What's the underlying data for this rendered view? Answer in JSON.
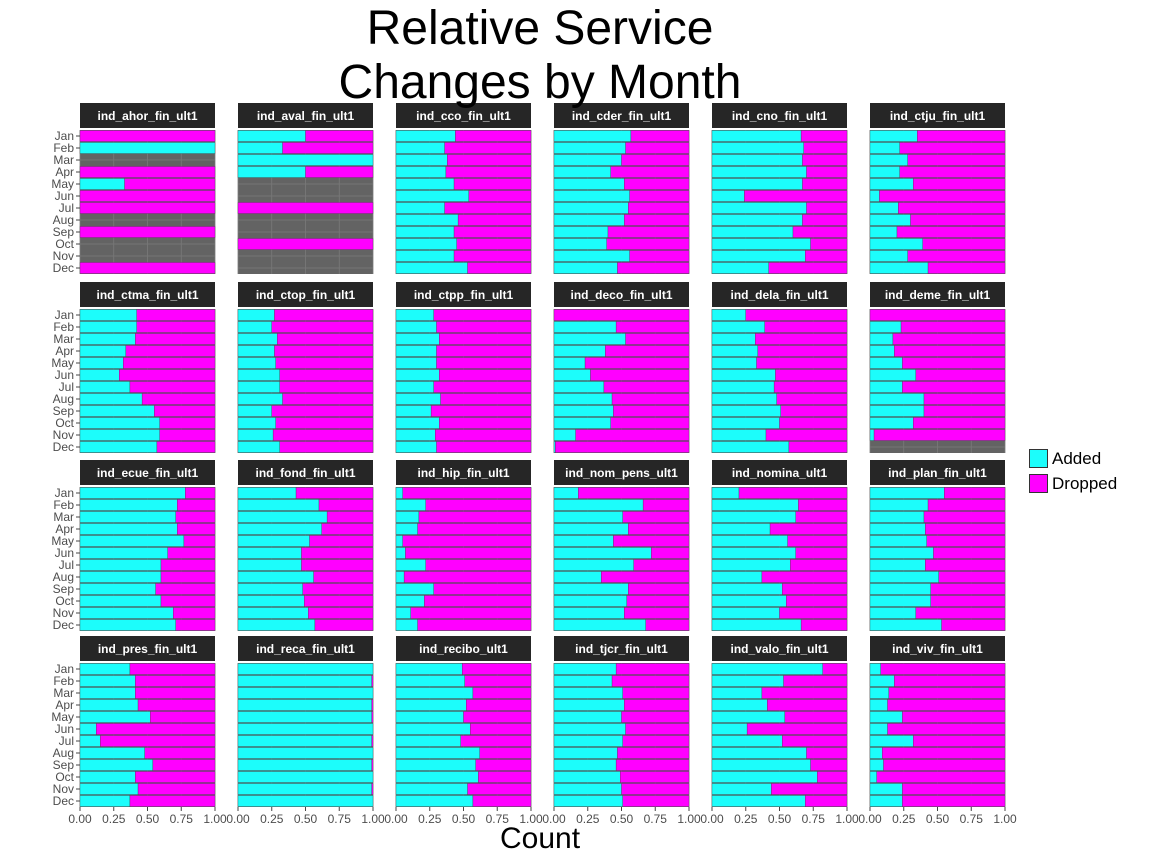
{
  "chart_data": {
    "type": "bar",
    "orientation": "horizontal",
    "stacked": true,
    "facet_grid": {
      "rows": 4,
      "cols": 6
    },
    "title": "Relative Service\nChanges by Month",
    "xlabel": "Count",
    "ylabel": "",
    "xlim": [
      0,
      1
    ],
    "x_ticks": [
      "0.00",
      "0.25",
      "0.50",
      "0.75",
      "1.00"
    ],
    "categories": [
      "Jan",
      "Feb",
      "Mar",
      "Apr",
      "May",
      "Jun",
      "Jul",
      "Aug",
      "Sep",
      "Oct",
      "Nov",
      "Dec"
    ],
    "grid": true,
    "legend": {
      "position": "right",
      "entries": [
        {
          "name": "Added",
          "color": "#1cfdfb"
        },
        {
          "name": "Dropped",
          "color": "#ff00ff"
        }
      ]
    },
    "colors": {
      "panel_bg": "#636363",
      "strip_bg": "#262626",
      "strip_text": "#ffffff",
      "grid": "#7a7a7a"
    },
    "series_note": "Each panel lists, per month, the Added fraction; Dropped = 1 - Added; null = no data",
    "panels": [
      {
        "name": "ind_ahor_fin_ult1",
        "added": [
          0,
          1.0,
          null,
          0,
          0.33,
          0,
          0,
          null,
          0,
          null,
          null,
          0
        ]
      },
      {
        "name": "ind_aval_fin_ult1",
        "added": [
          0.5,
          0.33,
          1.0,
          0.5,
          null,
          null,
          0,
          null,
          null,
          0,
          null,
          null
        ]
      },
      {
        "name": "ind_cco_fin_ult1",
        "added": [
          0.44,
          0.36,
          0.38,
          0.37,
          0.43,
          0.54,
          0.36,
          0.46,
          0.43,
          0.45,
          0.43,
          0.53
        ]
      },
      {
        "name": "ind_cder_fin_ult1",
        "added": [
          0.57,
          0.53,
          0.5,
          0.42,
          0.52,
          0.56,
          0.55,
          0.52,
          0.4,
          0.39,
          0.56,
          0.47
        ]
      },
      {
        "name": "ind_cno_fin_ult1",
        "added": [
          0.66,
          0.68,
          0.67,
          0.7,
          0.67,
          0.24,
          0.7,
          0.67,
          0.6,
          0.73,
          0.69,
          0.42
        ]
      },
      {
        "name": "ind_ctju_fin_ult1",
        "added": [
          0.35,
          0.22,
          0.28,
          0.22,
          0.32,
          0.07,
          0.21,
          0.3,
          0.2,
          0.39,
          0.28,
          0.43
        ]
      },
      {
        "name": "ind_ctma_fin_ult1",
        "added": [
          0.42,
          0.42,
          0.41,
          0.34,
          0.32,
          0.29,
          0.37,
          0.46,
          0.55,
          0.59,
          0.59,
          0.57
        ]
      },
      {
        "name": "ind_ctop_fin_ult1",
        "added": [
          0.27,
          0.25,
          0.29,
          0.27,
          0.28,
          0.31,
          0.31,
          0.33,
          0.25,
          0.28,
          0.26,
          0.31
        ]
      },
      {
        "name": "ind_ctpp_fin_ult1",
        "added": [
          0.28,
          0.3,
          0.32,
          0.3,
          0.3,
          0.32,
          0.28,
          0.33,
          0.26,
          0.32,
          0.29,
          0.3
        ]
      },
      {
        "name": "ind_deco_fin_ult1",
        "added": [
          0.0,
          0.46,
          0.53,
          0.38,
          0.23,
          0.27,
          0.37,
          0.43,
          0.44,
          0.42,
          0.16,
          0.01
        ]
      },
      {
        "name": "ind_dela_fin_ult1",
        "added": [
          0.25,
          0.39,
          0.32,
          0.34,
          0.33,
          0.47,
          0.46,
          0.48,
          0.51,
          0.5,
          0.4,
          0.57
        ]
      },
      {
        "name": "ind_deme_fin_ult1",
        "added": [
          0.0,
          0.23,
          0.17,
          0.18,
          0.24,
          0.34,
          0.24,
          0.4,
          0.4,
          0.32,
          0.03,
          null
        ]
      },
      {
        "name": "ind_ecue_fin_ult1",
        "added": [
          0.78,
          0.72,
          0.71,
          0.72,
          0.77,
          0.65,
          0.6,
          0.6,
          0.56,
          0.6,
          0.69,
          0.71
        ]
      },
      {
        "name": "ind_fond_fin_ult1",
        "added": [
          0.43,
          0.6,
          0.66,
          0.62,
          0.53,
          0.47,
          0.47,
          0.56,
          0.48,
          0.49,
          0.52,
          0.57
        ]
      },
      {
        "name": "ind_hip_fin_ult1",
        "added": [
          0.05,
          0.22,
          0.17,
          0.16,
          0.05,
          0.07,
          0.22,
          0.06,
          0.28,
          0.21,
          0.11,
          0.16
        ]
      },
      {
        "name": "ind_nom_pens_ult1",
        "added": [
          0.18,
          0.66,
          0.51,
          0.55,
          0.44,
          0.72,
          0.59,
          0.35,
          0.55,
          0.54,
          0.52,
          0.68
        ]
      },
      {
        "name": "ind_nomina_ult1",
        "added": [
          0.2,
          0.64,
          0.62,
          0.43,
          0.56,
          0.62,
          0.58,
          0.37,
          0.52,
          0.55,
          0.5,
          0.66
        ]
      },
      {
        "name": "ind_plan_fin_ult1",
        "added": [
          0.55,
          0.43,
          0.4,
          0.41,
          0.42,
          0.47,
          0.41,
          0.51,
          0.45,
          0.45,
          0.34,
          0.53
        ]
      },
      {
        "name": "ind_pres_fin_ult1",
        "added": [
          0.37,
          0.41,
          0.41,
          0.43,
          0.52,
          0.12,
          0.15,
          0.48,
          0.54,
          0.41,
          0.43,
          0.37
        ]
      },
      {
        "name": "ind_reca_fin_ult1",
        "added": [
          1.0,
          0.99,
          1.0,
          0.99,
          0.99,
          1.0,
          0.99,
          1.0,
          0.99,
          1.0,
          0.99,
          1.0
        ]
      },
      {
        "name": "ind_recibo_ult1",
        "added": [
          0.49,
          0.51,
          0.57,
          0.52,
          0.5,
          0.55,
          0.48,
          0.62,
          0.59,
          0.61,
          0.53,
          0.57
        ]
      },
      {
        "name": "ind_tjcr_fin_ult1",
        "added": [
          0.46,
          0.43,
          0.51,
          0.52,
          0.5,
          0.53,
          0.51,
          0.47,
          0.46,
          0.49,
          0.5,
          0.51
        ]
      },
      {
        "name": "ind_valo_fin_ult1",
        "added": [
          0.82,
          0.53,
          0.37,
          0.41,
          0.54,
          0.26,
          0.52,
          0.7,
          0.73,
          0.78,
          0.44,
          0.69
        ]
      },
      {
        "name": "ind_viv_fin_ult1",
        "added": [
          0.08,
          0.18,
          0.14,
          0.13,
          0.24,
          0.13,
          0.32,
          0.09,
          0.1,
          0.05,
          0.24,
          0.24
        ]
      }
    ]
  }
}
